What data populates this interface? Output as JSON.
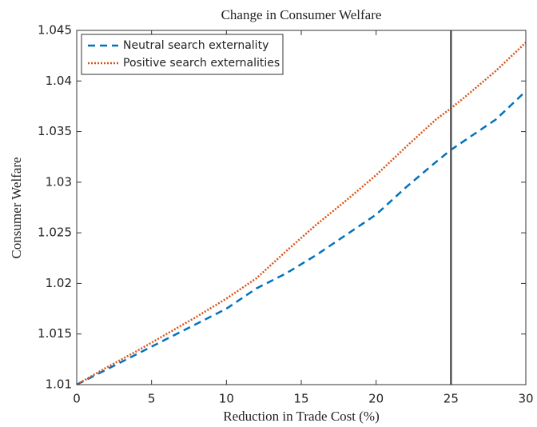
{
  "chart_data": {
    "type": "line",
    "title": "Change in Consumer Welfare",
    "xlabel": "Reduction in Trade Cost (%)",
    "ylabel": "Consumer Welfare",
    "x": [
      0,
      2,
      4,
      6,
      8,
      10,
      12,
      14,
      16,
      18,
      20,
      22,
      24,
      25,
      26,
      28,
      30
    ],
    "series": [
      {
        "name": "Neutral search externality",
        "color": "#0072bd",
        "dash": "dashed",
        "values": [
          1.01,
          1.0115,
          1.013,
          1.0145,
          1.016,
          1.0175,
          1.0195,
          1.021,
          1.0228,
          1.0248,
          1.0268,
          1.0295,
          1.032,
          1.0332,
          1.0342,
          1.0362,
          1.039
        ]
      },
      {
        "name": "Positive search externalities",
        "color": "#d95319",
        "dash": "dotted",
        "values": [
          1.01,
          1.0117,
          1.0133,
          1.015,
          1.0167,
          1.0185,
          1.0205,
          1.0232,
          1.0258,
          1.0282,
          1.0307,
          1.0335,
          1.0362,
          1.0373,
          1.0385,
          1.041,
          1.0438
        ]
      }
    ],
    "vline": 25,
    "xlim": [
      0,
      30
    ],
    "xticks": [
      0,
      5,
      10,
      15,
      20,
      25,
      30
    ],
    "ylim": [
      1.01,
      1.045
    ],
    "yticks": [
      1.01,
      1.015,
      1.02,
      1.025,
      1.03,
      1.035,
      1.04,
      1.045
    ],
    "legend": "northwest"
  }
}
